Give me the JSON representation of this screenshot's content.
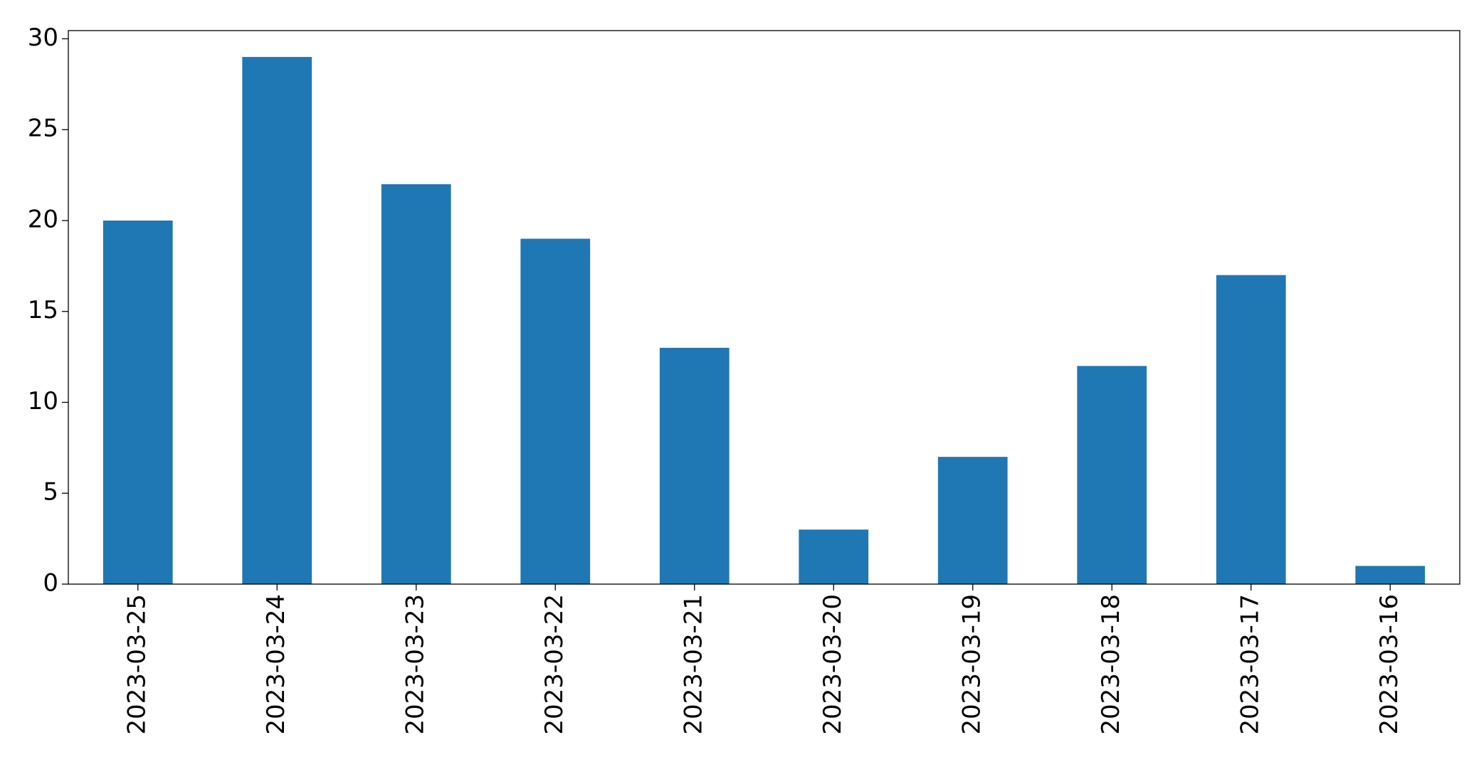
{
  "chart_data": {
    "type": "bar",
    "categories": [
      "2023-03-25",
      "2023-03-24",
      "2023-03-23",
      "2023-03-22",
      "2023-03-21",
      "2023-03-20",
      "2023-03-19",
      "2023-03-18",
      "2023-03-17",
      "2023-03-16"
    ],
    "values": [
      20,
      29,
      22,
      19,
      13,
      3,
      7,
      12,
      17,
      1
    ],
    "color": "#1f77b4",
    "ylim": [
      0,
      30.45
    ],
    "yticks": [
      0,
      5,
      10,
      15,
      20,
      25,
      30
    ],
    "grid": false
  }
}
